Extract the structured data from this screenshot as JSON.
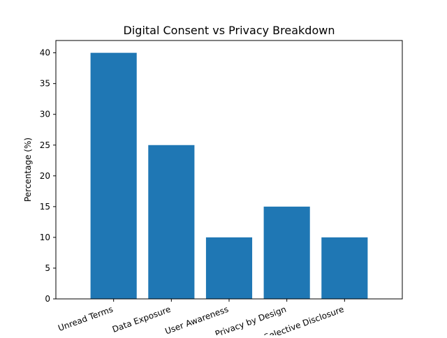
{
  "chart_data": {
    "type": "bar",
    "title": "Digital Consent vs Privacy Breakdown",
    "xlabel": "",
    "ylabel": "Percentage (%)",
    "categories": [
      "Unread Terms",
      "Data Exposure",
      "User Awareness",
      "Privacy by Design",
      "Selective Disclosure"
    ],
    "values": [
      40,
      25,
      10,
      15,
      10
    ],
    "ylim": [
      0,
      42
    ],
    "yticks": [
      0,
      5,
      10,
      15,
      20,
      25,
      30,
      35,
      40
    ],
    "bar_color": "#1f77b4",
    "grid": false,
    "legend": "none"
  }
}
